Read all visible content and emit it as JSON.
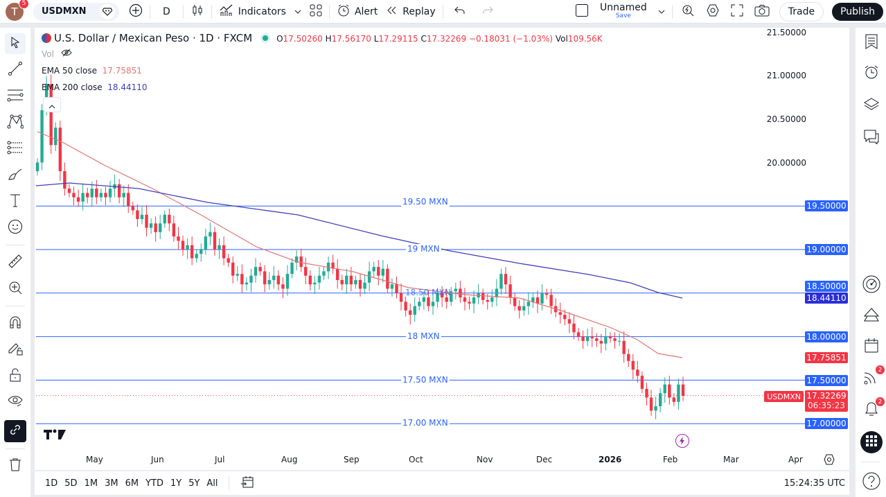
{
  "topbar": {
    "avatar_letter": "T",
    "avatar_badge": "5",
    "symbol": "USDMXN",
    "interval": "D",
    "indicators": "Indicators",
    "alert": "Alert",
    "replay": "Replay",
    "layout_name": "Unnamed",
    "layout_save": "Save",
    "trade": "Trade",
    "publish": "Publish"
  },
  "legend": {
    "title": "U.S. Dollar / Mexican Peso · 1D · FXCM",
    "o_label": "O",
    "o": "17.50260",
    "h_label": "H",
    "h": "17.56170",
    "l_label": "L",
    "l": "17.29115",
    "c_label": "C",
    "c": "17.32269",
    "change": "−0.18031 (−1.03%)",
    "vol_label": "Vol",
    "vol": "109.56K",
    "vol_row": "Vol",
    "ema50_label": "EMA 50 close",
    "ema50": "17.75851",
    "ema200_label": "EMA 200 close",
    "ema200": "18.44110"
  },
  "colors": {
    "up": "#22ab94",
    "down": "#f23645",
    "ema50": "#e57373",
    "ema200": "#3f3fb8",
    "hline": "#2962ff",
    "accent": "#2962ff"
  },
  "price_axis": {
    "labels": [
      "21.50000",
      "21.00000",
      "20.50000",
      "20.00000"
    ],
    "hlines": [
      {
        "label": "19.50 MXN",
        "price": "19.50000",
        "v": 19.5
      },
      {
        "label": "19 MXN",
        "price": "19.00000",
        "v": 19.0
      },
      {
        "label": "18.50 MXN",
        "price": "18.50000",
        "v": 18.5
      },
      {
        "label": "18 MXN",
        "price": "18.00000",
        "v": 18.0
      },
      {
        "label": "17.50 MXN",
        "price": "17.50000",
        "v": 17.5
      },
      {
        "label": "17.00 MXN",
        "price": "17.00000",
        "v": 17.0
      }
    ],
    "ema200_tag": "18.44110",
    "ema50_tag": "17.75851",
    "last_symbol": "USDMXN",
    "last_price": "17.32269",
    "countdown": "06:35:23"
  },
  "time_axis": {
    "labels": [
      "May",
      "Jun",
      "Jul",
      "Aug",
      "Sep",
      "Oct",
      "Nov",
      "Dec",
      "2026",
      "Feb",
      "Mar",
      "Apr"
    ]
  },
  "bottombar": {
    "ranges": [
      "1D",
      "5D",
      "1M",
      "3M",
      "6M",
      "YTD",
      "1Y",
      "5Y",
      "All"
    ],
    "clock": "15:24:35 UTC"
  },
  "rightbar": {
    "feed_badge": "2",
    "alerts_badge": "2"
  },
  "chart_data": {
    "type": "candlestick",
    "title": "U.S. Dollar / Mexican Peso · 1D · FXCM",
    "ylim": [
      16.8,
      21.6
    ],
    "closes": [
      20.0,
      20.6,
      20.9,
      20.2,
      20.4,
      19.9,
      19.7,
      19.65,
      19.6,
      19.55,
      19.65,
      19.6,
      19.7,
      19.6,
      19.65,
      19.6,
      19.7,
      19.75,
      19.6,
      19.65,
      19.5,
      19.45,
      19.35,
      19.4,
      19.25,
      19.3,
      19.2,
      19.3,
      19.4,
      19.3,
      19.15,
      19.1,
      19.0,
      19.05,
      18.9,
      18.95,
      19.0,
      19.15,
      19.2,
      19.0,
      19.05,
      18.9,
      18.85,
      18.7,
      18.72,
      18.6,
      18.62,
      18.7,
      18.8,
      18.75,
      18.6,
      18.65,
      18.7,
      18.6,
      18.55,
      18.72,
      18.85,
      18.92,
      18.8,
      18.7,
      18.6,
      18.62,
      18.7,
      18.75,
      18.85,
      18.78,
      18.65,
      18.6,
      18.7,
      18.6,
      18.65,
      18.55,
      18.62,
      18.75,
      18.8,
      18.7,
      18.78,
      18.55,
      18.6,
      18.5,
      18.4,
      18.3,
      18.25,
      18.35,
      18.4,
      18.45,
      18.35,
      18.4,
      18.5,
      18.45,
      18.4,
      18.52,
      18.55,
      18.45,
      18.4,
      18.38,
      18.45,
      18.5,
      18.42,
      18.4,
      18.45,
      18.55,
      18.72,
      18.6,
      18.45,
      18.35,
      18.3,
      18.35,
      18.4,
      18.45,
      18.38,
      18.5,
      18.48,
      18.35,
      18.28,
      18.25,
      18.2,
      18.15,
      18.05,
      18.0,
      17.95,
      18.0,
      17.98,
      17.95,
      17.92,
      18.0,
      17.98,
      17.95,
      17.95,
      17.8,
      17.72,
      17.62,
      17.55,
      17.4,
      17.3,
      17.15,
      17.2,
      17.35,
      17.45,
      17.3,
      17.25,
      17.45,
      17.32
    ]
  }
}
